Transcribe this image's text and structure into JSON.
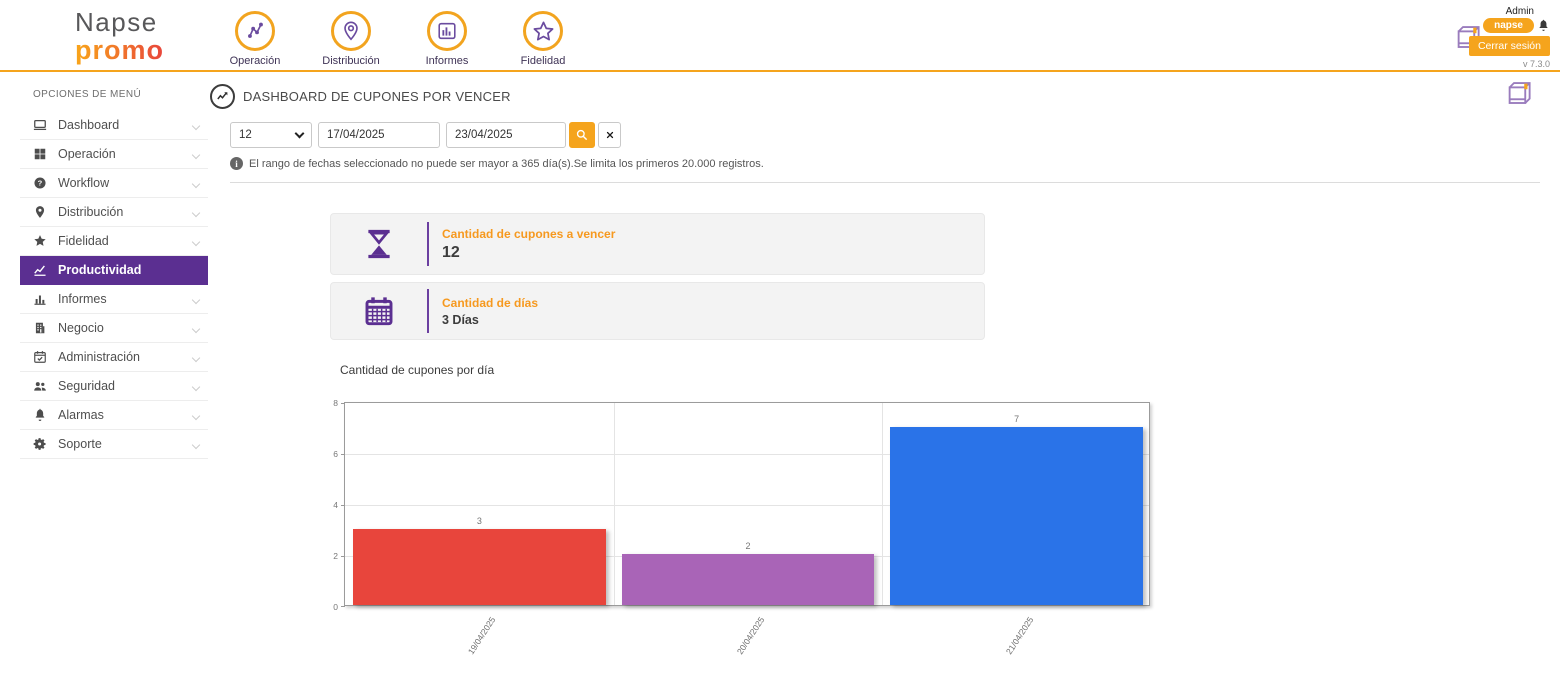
{
  "brand": {
    "line1": "Napse",
    "line2": "promo"
  },
  "top_nav": {
    "items": [
      {
        "label": "Operación",
        "icon": "network-icon"
      },
      {
        "label": "Distribución",
        "icon": "map-pin-icon"
      },
      {
        "label": "Informes",
        "icon": "bar-chart-icon"
      },
      {
        "label": "Fidelidad",
        "icon": "star-icon"
      }
    ]
  },
  "user_panel": {
    "role": "Admin",
    "user_badge": "napse",
    "logout_label": "Cerrar sesión",
    "version": "v 7.3.0"
  },
  "sidebar": {
    "header": "OPCIONES DE MENÚ",
    "items": [
      {
        "label": "Dashboard",
        "icon": "monitor-icon",
        "selected": false
      },
      {
        "label": "Operación",
        "icon": "grid-icon",
        "selected": false
      },
      {
        "label": "Workflow",
        "icon": "help-circle-icon",
        "selected": false
      },
      {
        "label": "Distribución",
        "icon": "map-pin-icon",
        "selected": false
      },
      {
        "label": "Fidelidad",
        "icon": "star-icon",
        "selected": false
      },
      {
        "label": "Productividad",
        "icon": "line-chart-icon",
        "selected": true
      },
      {
        "label": "Informes",
        "icon": "bar-chart-icon",
        "selected": false
      },
      {
        "label": "Negocio",
        "icon": "business-icon",
        "selected": false
      },
      {
        "label": "Administración",
        "icon": "calendar-check-icon",
        "selected": false
      },
      {
        "label": "Seguridad",
        "icon": "users-icon",
        "selected": false
      },
      {
        "label": "Alarmas",
        "icon": "bell-icon",
        "selected": false
      },
      {
        "label": "Soporte",
        "icon": "gear-icon",
        "selected": false
      }
    ]
  },
  "page": {
    "title": "DASHBOARD DE CUPONES POR VENCER"
  },
  "filters": {
    "days_select_value": "12",
    "date_from": "17/04/2025",
    "date_to": "23/04/2025",
    "info_text": "El rango de fechas seleccionado no puede ser mayor a 365 día(s).Se limita los primeros 20.000 registros."
  },
  "summary_cards": [
    {
      "icon": "hourglass-icon",
      "label": "Cantidad de cupones a vencer",
      "value": "12"
    },
    {
      "icon": "calendar-icon",
      "label": "Cantidad de días",
      "value": "3 Días"
    }
  ],
  "chart_data": {
    "type": "bar",
    "title": "Cantidad de cupones por día",
    "categories": [
      "19/04/2025",
      "20/04/2025",
      "21/04/2025"
    ],
    "values": [
      3,
      2,
      7
    ],
    "bar_colors": [
      "#e8453c",
      "#a964b7",
      "#2a73e8"
    ],
    "xlabel": "",
    "ylabel": "",
    "ylim": [
      0,
      8
    ],
    "yticks": [
      0,
      2,
      4,
      6,
      8
    ],
    "grid": true,
    "legend": "none",
    "value_labels": true
  },
  "colors": {
    "accent_orange": "#f5a41d",
    "brand_purple": "#5b2f91",
    "bar_red": "#e8453c",
    "bar_purple": "#a964b7",
    "bar_blue": "#2a73e8"
  }
}
